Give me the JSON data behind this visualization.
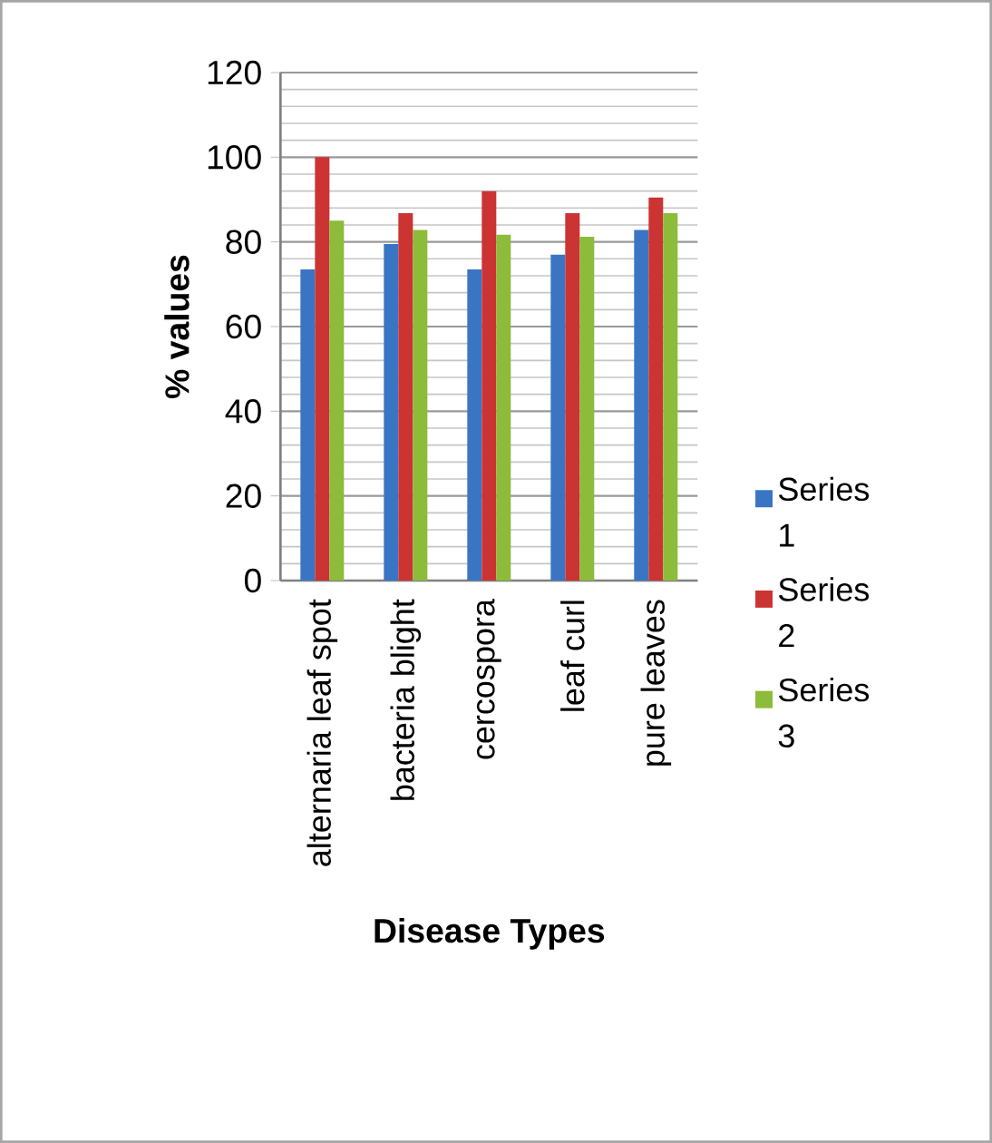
{
  "chart_data": {
    "type": "bar",
    "xlabel": "Disease Types",
    "ylabel": "% values",
    "categories": [
      "alternaria leaf spot",
      "bacteria blight",
      "cercospora",
      "leaf curl",
      "pure leaves"
    ],
    "series": [
      {
        "name": "Series 1",
        "color": "#3a75c4",
        "values": [
          73.5,
          79.5,
          73.5,
          77,
          82.8
        ]
      },
      {
        "name": "Series 2",
        "color": "#cc3333",
        "values": [
          100,
          86.8,
          92,
          86.8,
          90.5
        ]
      },
      {
        "name": "Series 3",
        "color": "#8dbb3a",
        "values": [
          85,
          82.8,
          81.7,
          81.2,
          86.8
        ]
      }
    ],
    "ylim": [
      0,
      120
    ],
    "yticks": [
      0,
      20,
      40,
      60,
      80,
      100,
      120
    ],
    "grid": "y",
    "legend": "right"
  }
}
